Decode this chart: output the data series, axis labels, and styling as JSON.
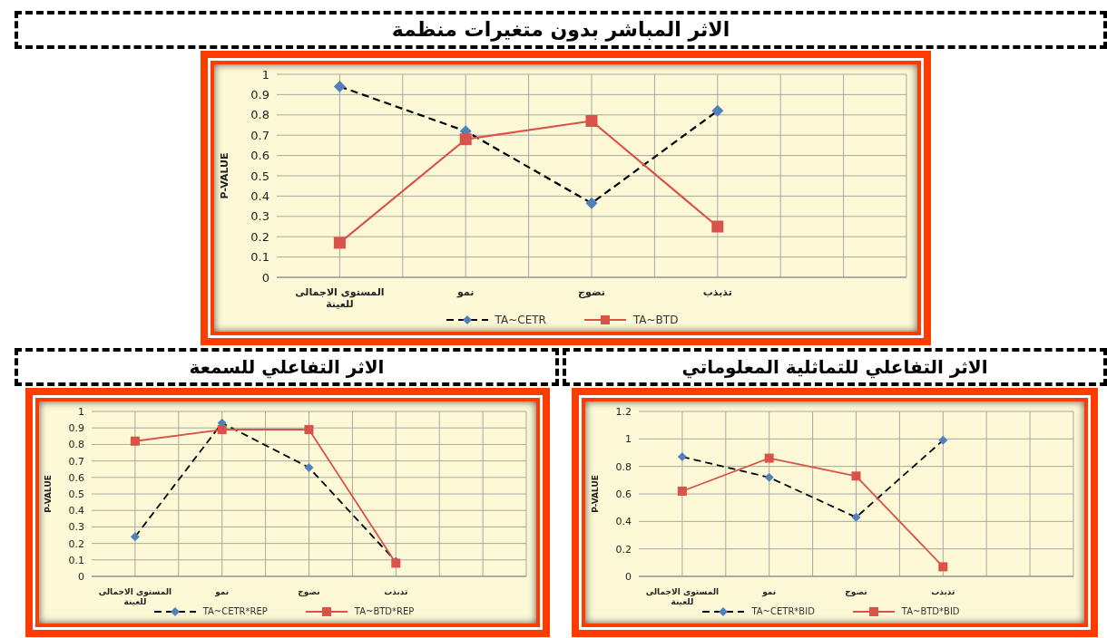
{
  "chart_data": [
    {
      "type": "line",
      "title": "الاثر المباشر بدون متغيرات منظمة",
      "ylabel": "P-VALUE",
      "categories": [
        "المستوى الاجمالى للعينة",
        "نمو",
        "نضوج",
        "تذبذب",
        null
      ],
      "ylim": [
        0,
        1
      ],
      "yticks": [
        0,
        0.1,
        0.2,
        0.3,
        0.4,
        0.5,
        0.6,
        0.7,
        0.8,
        0.9,
        1
      ],
      "grid": true,
      "legend": "bottom",
      "series": [
        {
          "name": "TA~CETR",
          "color": "#000000",
          "colors": [
            "#4f81bd",
            "#4f81bd",
            "#4f81bd",
            "#4f81bd",
            null
          ],
          "marker": "diamond",
          "line_style": "dashed",
          "values": [
            0.94,
            0.72,
            0.365,
            0.82,
            null
          ]
        },
        {
          "name": "TA~BTD",
          "color": "#d9534a",
          "marker": "square",
          "line_style": "solid",
          "values": [
            0.17,
            0.68,
            0.77,
            0.25,
            null
          ]
        }
      ]
    },
    {
      "type": "line",
      "title": "الاثر التفاعلي للسمعة",
      "ylabel": "P-VALUE",
      "categories": [
        "المستوى الاجمالى للعينة",
        "نمو",
        "نضوج",
        "تذبذب",
        null
      ],
      "ylim": [
        0,
        1
      ],
      "yticks": [
        0,
        0.1,
        0.2,
        0.3,
        0.4,
        0.5,
        0.6,
        0.7,
        0.8,
        0.9,
        1
      ],
      "grid": true,
      "legend": "bottom",
      "series": [
        {
          "name": "TA~CETR*REP",
          "color": "#000000",
          "colors": [
            "#4f81bd",
            "#4f81bd",
            "#4f81bd",
            "#4f81bd",
            null
          ],
          "marker": "diamond",
          "line_style": "dashed",
          "values": [
            0.24,
            0.93,
            0.66,
            0.09,
            null
          ]
        },
        {
          "name": "TA~BTD*REP",
          "color": "#d9534a",
          "marker": "square",
          "line_style": "solid",
          "values": [
            0.82,
            0.89,
            0.89,
            0.08,
            null
          ]
        }
      ]
    },
    {
      "type": "line",
      "title": "الاثر التفاعلي للتماثلية المعلوماتي",
      "ylabel": "P-VALUE",
      "categories": [
        "المستوى الاجمالى للعينة",
        "نمو",
        "نضوج",
        "تذبذب",
        null
      ],
      "ylim": [
        0,
        1.2
      ],
      "yticks": [
        0,
        0.2,
        0.4,
        0.6,
        0.8,
        1,
        1.2
      ],
      "grid": true,
      "legend": "bottom",
      "series": [
        {
          "name": "TA~CETR*BID",
          "color": "#000000",
          "colors": [
            "#4f81bd",
            "#4f81bd",
            "#4f81bd",
            "#4f81bd",
            null
          ],
          "marker": "diamond",
          "line_style": "dashed",
          "values": [
            0.87,
            0.72,
            0.43,
            0.99,
            null
          ]
        },
        {
          "name": "TA~BTD*BID",
          "color": "#d9534a",
          "marker": "square",
          "line_style": "solid",
          "values": [
            0.62,
            0.86,
            0.73,
            0.07,
            null
          ]
        }
      ]
    }
  ]
}
